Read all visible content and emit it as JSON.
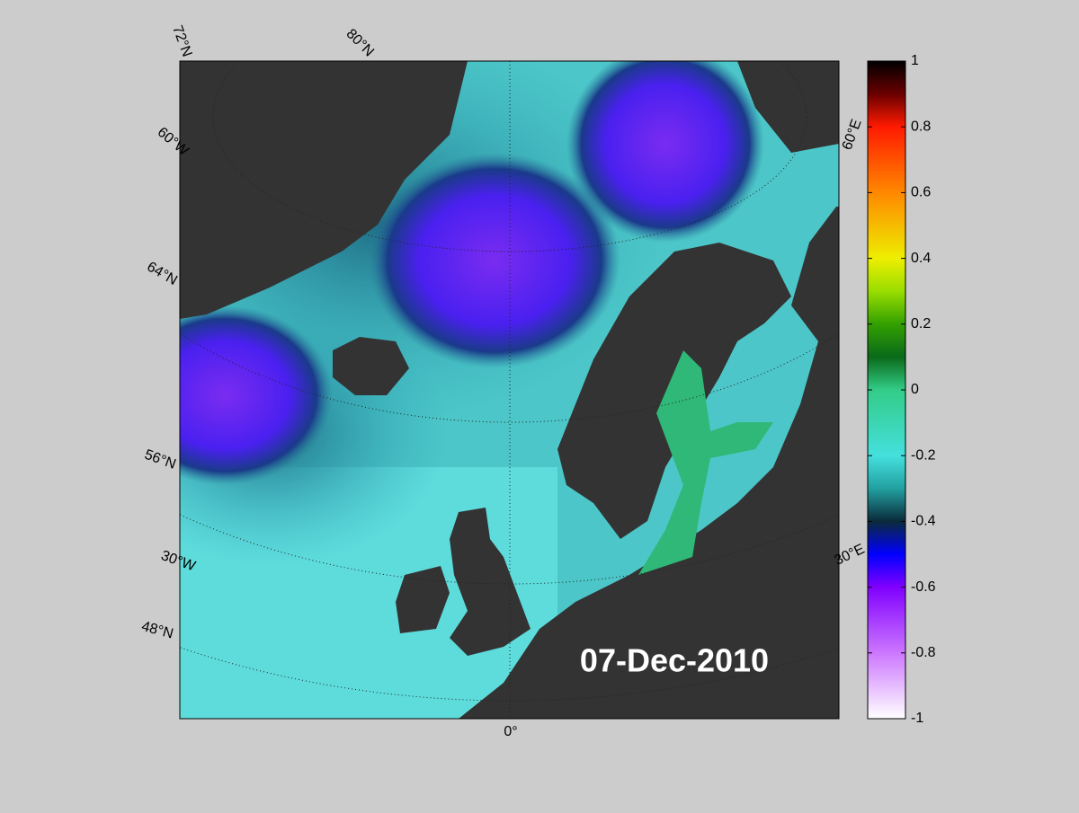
{
  "map": {
    "date": "07-Dec-2010",
    "lat_labels": [
      "72°N",
      "80°N",
      "64°N",
      "56°N",
      "48°N"
    ],
    "lon_labels": [
      "60°W",
      "30°W",
      "0°",
      "30°E",
      "60°E"
    ]
  },
  "colorbar": {
    "ylim": [
      -1,
      1
    ],
    "yticks": [
      -1,
      -0.8,
      -0.6,
      -0.4,
      -0.2,
      0,
      0.2,
      0.4,
      0.6,
      0.8,
      1
    ]
  }
}
